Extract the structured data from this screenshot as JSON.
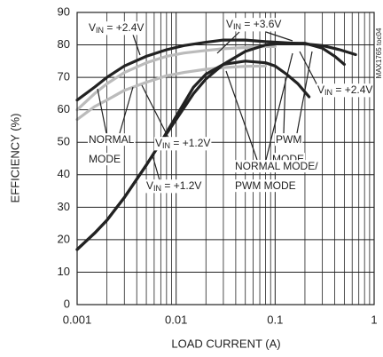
{
  "chart_data": {
    "type": "line",
    "xlabel": "LOAD CURRENT (A)",
    "ylabel": "EFFICIENCY (%)",
    "code": "MAX1765 toc04",
    "xlog": true,
    "xlim": [
      0.001,
      1
    ],
    "xticks": [
      0.001,
      0.01,
      0.1,
      1
    ],
    "xminor": [
      0.002,
      0.003,
      0.004,
      0.005,
      0.006,
      0.007,
      0.008,
      0.009,
      0.02,
      0.03,
      0.04,
      0.05,
      0.06,
      0.07,
      0.08,
      0.09,
      0.2,
      0.3,
      0.4,
      0.5,
      0.6,
      0.7,
      0.8,
      0.9
    ],
    "ylim": [
      0,
      90
    ],
    "yticks": [
      0,
      10,
      20,
      30,
      40,
      50,
      60,
      70,
      80,
      90
    ],
    "grid": true,
    "series": [
      {
        "color": "#222222",
        "x": [
          0.001,
          0.0015,
          0.002,
          0.003,
          0.005,
          0.008,
          0.012,
          0.02,
          0.03,
          0.05,
          0.08,
          0.12,
          0.2,
          0.3,
          0.45,
          0.65
        ],
        "values": [
          63,
          67,
          70,
          73.5,
          76.5,
          78.5,
          79.8,
          80.8,
          81.5,
          81.5,
          81,
          80.7,
          80.3,
          79.8,
          78.5,
          77
        ]
      },
      {
        "color": "#222222",
        "x": [
          0.001,
          0.0015,
          0.002,
          0.003,
          0.005,
          0.007,
          0.01,
          0.015,
          0.02,
          0.03,
          0.05,
          0.08,
          0.12,
          0.2,
          0.3,
          0.4,
          0.5
        ],
        "values": [
          17,
          22,
          26,
          33,
          43,
          50,
          57,
          65,
          69.5,
          74,
          78,
          80,
          80.5,
          80.5,
          79,
          76.5,
          74
        ]
      },
      {
        "color": "#222222",
        "x": [
          0.001,
          0.0015,
          0.002,
          0.003,
          0.005,
          0.007,
          0.01,
          0.015,
          0.02,
          0.03,
          0.05,
          0.08,
          0.1,
          0.13,
          0.17,
          0.22
        ],
        "values": [
          17,
          22,
          26,
          33,
          43,
          50,
          58,
          67,
          71,
          74,
          75,
          74.5,
          73.5,
          71,
          68,
          64
        ]
      },
      {
        "color": "#bbbbbb",
        "x": [
          0.001,
          0.0015,
          0.002,
          0.003,
          0.005,
          0.008,
          0.012,
          0.02,
          0.03,
          0.05,
          0.08,
          0.1
        ],
        "values": [
          60,
          65,
          68,
          71.5,
          74.5,
          76.5,
          77.5,
          78.3,
          78.8,
          79.2,
          79.5,
          79.5
        ]
      },
      {
        "color": "#bbbbbb",
        "x": [
          0.001,
          0.0015,
          0.002,
          0.003,
          0.005,
          0.008,
          0.012,
          0.02,
          0.03,
          0.05,
          0.08
        ],
        "values": [
          57,
          61,
          63,
          66,
          68.5,
          70.5,
          71.5,
          72.5,
          73,
          73.4,
          73.5
        ]
      }
    ],
    "annotations": [
      {
        "parts": [
          "V",
          "IN",
          " = +2.4V"
        ]
      },
      {
        "parts": [
          "V",
          "IN",
          " = +3.6V"
        ]
      },
      {
        "parts": [
          "V",
          "IN",
          " = +2.4V"
        ]
      },
      {
        "parts": [
          "NORMAL"
        ]
      },
      {
        "parts": [
          "MODE"
        ]
      },
      {
        "parts": [
          "V",
          "IN",
          " = +1.2V"
        ]
      },
      {
        "parts": [
          "PWM"
        ]
      },
      {
        "parts": [
          "MODE"
        ]
      },
      {
        "parts": [
          "NORMAL MODE/"
        ]
      },
      {
        "parts": [
          "PWM MODE"
        ]
      },
      {
        "parts": [
          "V",
          "IN",
          " = +1.2V"
        ]
      }
    ]
  }
}
